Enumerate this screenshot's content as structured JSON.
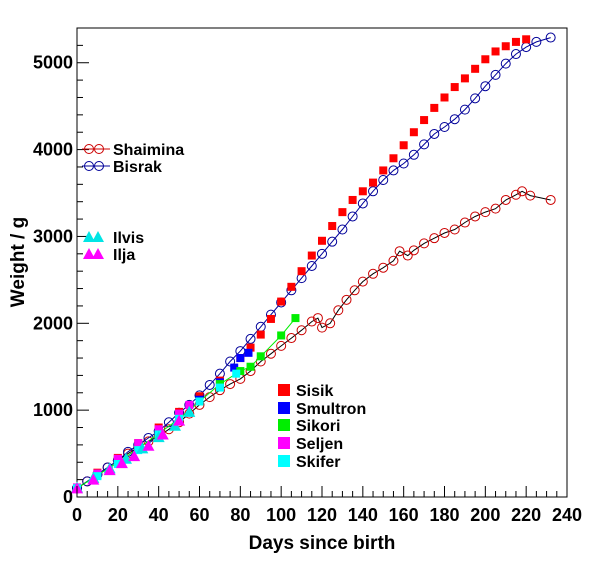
{
  "chart_data": {
    "type": "scatter",
    "xlabel": "Days since birth",
    "ylabel": "Weight / g",
    "xlim": [
      0,
      240
    ],
    "ylim": [
      0,
      5400
    ],
    "x_ticks": [
      0,
      20,
      40,
      60,
      80,
      100,
      120,
      140,
      160,
      180,
      200,
      220,
      240
    ],
    "y_ticks": [
      0,
      1000,
      2000,
      3000,
      4000,
      5000
    ],
    "grid": false,
    "series": [
      {
        "name": "Shaimina",
        "color": "#cc0000",
        "marker": "open-circle",
        "line": true,
        "points": [
          [
            0,
            100
          ],
          [
            5,
            180
          ],
          [
            10,
            260
          ],
          [
            15,
            340
          ],
          [
            20,
            420
          ],
          [
            25,
            500
          ],
          [
            30,
            570
          ],
          [
            35,
            640
          ],
          [
            40,
            700
          ],
          [
            45,
            780
          ],
          [
            50,
            860
          ],
          [
            55,
            960
          ],
          [
            60,
            1060
          ],
          [
            65,
            1150
          ],
          [
            70,
            1230
          ],
          [
            75,
            1300
          ],
          [
            80,
            1360
          ],
          [
            85,
            1450
          ],
          [
            90,
            1560
          ],
          [
            95,
            1650
          ],
          [
            100,
            1740
          ],
          [
            105,
            1830
          ],
          [
            110,
            1920
          ],
          [
            115,
            2020
          ],
          [
            118,
            2060
          ],
          [
            120,
            1950
          ],
          [
            124,
            2000
          ],
          [
            128,
            2150
          ],
          [
            132,
            2270
          ],
          [
            136,
            2380
          ],
          [
            140,
            2480
          ],
          [
            145,
            2570
          ],
          [
            150,
            2640
          ],
          [
            155,
            2720
          ],
          [
            158,
            2830
          ],
          [
            162,
            2780
          ],
          [
            165,
            2840
          ],
          [
            170,
            2920
          ],
          [
            175,
            2980
          ],
          [
            180,
            3040
          ],
          [
            185,
            3080
          ],
          [
            190,
            3160
          ],
          [
            195,
            3230
          ],
          [
            200,
            3280
          ],
          [
            205,
            3320
          ],
          [
            210,
            3420
          ],
          [
            215,
            3480
          ],
          [
            218,
            3520
          ],
          [
            222,
            3470
          ],
          [
            232,
            3420
          ]
        ]
      },
      {
        "name": "Bisrak",
        "color": "#000099",
        "marker": "open-circle",
        "line": true,
        "points": [
          [
            0,
            100
          ],
          [
            5,
            180
          ],
          [
            10,
            260
          ],
          [
            15,
            340
          ],
          [
            20,
            420
          ],
          [
            25,
            520
          ],
          [
            30,
            600
          ],
          [
            35,
            680
          ],
          [
            40,
            760
          ],
          [
            45,
            860
          ],
          [
            50,
            970
          ],
          [
            55,
            1060
          ],
          [
            60,
            1170
          ],
          [
            65,
            1290
          ],
          [
            70,
            1420
          ],
          [
            75,
            1560
          ],
          [
            80,
            1680
          ],
          [
            85,
            1820
          ],
          [
            90,
            1960
          ],
          [
            95,
            2100
          ],
          [
            100,
            2240
          ],
          [
            105,
            2380
          ],
          [
            110,
            2520
          ],
          [
            115,
            2660
          ],
          [
            120,
            2800
          ],
          [
            125,
            2940
          ],
          [
            130,
            3080
          ],
          [
            135,
            3230
          ],
          [
            140,
            3380
          ],
          [
            145,
            3520
          ],
          [
            150,
            3650
          ],
          [
            155,
            3760
          ],
          [
            160,
            3840
          ],
          [
            165,
            3940
          ],
          [
            170,
            4060
          ],
          [
            175,
            4180
          ],
          [
            180,
            4260
          ],
          [
            185,
            4350
          ],
          [
            190,
            4460
          ],
          [
            195,
            4590
          ],
          [
            200,
            4730
          ],
          [
            205,
            4860
          ],
          [
            210,
            4990
          ],
          [
            215,
            5100
          ],
          [
            220,
            5180
          ],
          [
            225,
            5240
          ],
          [
            232,
            5290
          ]
        ]
      },
      {
        "name": "Sisik",
        "color": "#ff0000",
        "marker": "square",
        "line": false,
        "points": [
          [
            0,
            110
          ],
          [
            10,
            280
          ],
          [
            20,
            450
          ],
          [
            30,
            620
          ],
          [
            40,
            800
          ],
          [
            50,
            980
          ],
          [
            60,
            1160
          ],
          [
            70,
            1340
          ],
          [
            80,
            1600
          ],
          [
            85,
            1720
          ],
          [
            90,
            1870
          ],
          [
            95,
            2050
          ],
          [
            100,
            2250
          ],
          [
            105,
            2420
          ],
          [
            110,
            2600
          ],
          [
            115,
            2780
          ],
          [
            120,
            2950
          ],
          [
            125,
            3120
          ],
          [
            130,
            3280
          ],
          [
            135,
            3420
          ],
          [
            140,
            3520
          ],
          [
            145,
            3620
          ],
          [
            150,
            3760
          ],
          [
            155,
            3900
          ],
          [
            160,
            4050
          ],
          [
            165,
            4200
          ],
          [
            170,
            4340
          ],
          [
            175,
            4480
          ],
          [
            180,
            4600
          ],
          [
            185,
            4720
          ],
          [
            190,
            4820
          ],
          [
            195,
            4930
          ],
          [
            200,
            5040
          ],
          [
            205,
            5130
          ],
          [
            210,
            5190
          ],
          [
            215,
            5240
          ],
          [
            220,
            5270
          ]
        ]
      },
      {
        "name": "Smultron",
        "color": "#0000ff",
        "marker": "square",
        "line": false,
        "points": [
          [
            0,
            100
          ],
          [
            10,
            260
          ],
          [
            20,
            420
          ],
          [
            30,
            580
          ],
          [
            40,
            740
          ],
          [
            50,
            900
          ],
          [
            60,
            1120
          ],
          [
            70,
            1320
          ],
          [
            77,
            1490
          ],
          [
            80,
            1600
          ],
          [
            84,
            1660
          ]
        ]
      },
      {
        "name": "Sikori",
        "color": "#00ee00",
        "marker": "square",
        "line": true,
        "points": [
          [
            0,
            100
          ],
          [
            10,
            250
          ],
          [
            20,
            400
          ],
          [
            30,
            560
          ],
          [
            40,
            730
          ],
          [
            50,
            900
          ],
          [
            60,
            1100
          ],
          [
            70,
            1300
          ],
          [
            80,
            1450
          ],
          [
            85,
            1500
          ],
          [
            90,
            1620
          ],
          [
            100,
            1860
          ],
          [
            107,
            2060
          ]
        ]
      },
      {
        "name": "Seljen",
        "color": "#ff00ff",
        "marker": "square",
        "line": false,
        "points": [
          [
            0,
            110
          ],
          [
            10,
            270
          ],
          [
            20,
            440
          ],
          [
            30,
            620
          ],
          [
            40,
            780
          ],
          [
            50,
            960
          ],
          [
            55,
            1060
          ]
        ]
      },
      {
        "name": "Skifer",
        "color": "#00ffff",
        "marker": "square",
        "line": false,
        "points": [
          [
            0,
            100
          ],
          [
            10,
            240
          ],
          [
            20,
            380
          ],
          [
            30,
            540
          ],
          [
            40,
            720
          ],
          [
            50,
            900
          ],
          [
            60,
            1100
          ],
          [
            70,
            1260
          ],
          [
            78,
            1420
          ]
        ]
      },
      {
        "name": "Ilvis",
        "color": "#00e5e5",
        "marker": "triangle",
        "line": false,
        "points": [
          [
            0,
            110
          ],
          [
            8,
            220
          ],
          [
            16,
            330
          ],
          [
            24,
            440
          ],
          [
            32,
            560
          ],
          [
            40,
            690
          ],
          [
            48,
            820
          ],
          [
            55,
            980
          ]
        ]
      },
      {
        "name": "Ilja",
        "color": "#ff00ff",
        "marker": "triangle",
        "line": false,
        "points": [
          [
            0,
            100
          ],
          [
            8,
            200
          ],
          [
            16,
            310
          ],
          [
            22,
            390
          ],
          [
            28,
            470
          ],
          [
            35,
            590
          ],
          [
            42,
            720
          ],
          [
            50,
            880
          ]
        ]
      }
    ],
    "legend_left": [
      "Shaimina",
      "Bisrak",
      "Ilvis",
      "Ilja"
    ],
    "legend_right": [
      "Sisik",
      "Smultron",
      "Sikori",
      "Seljen",
      "Skifer"
    ]
  }
}
